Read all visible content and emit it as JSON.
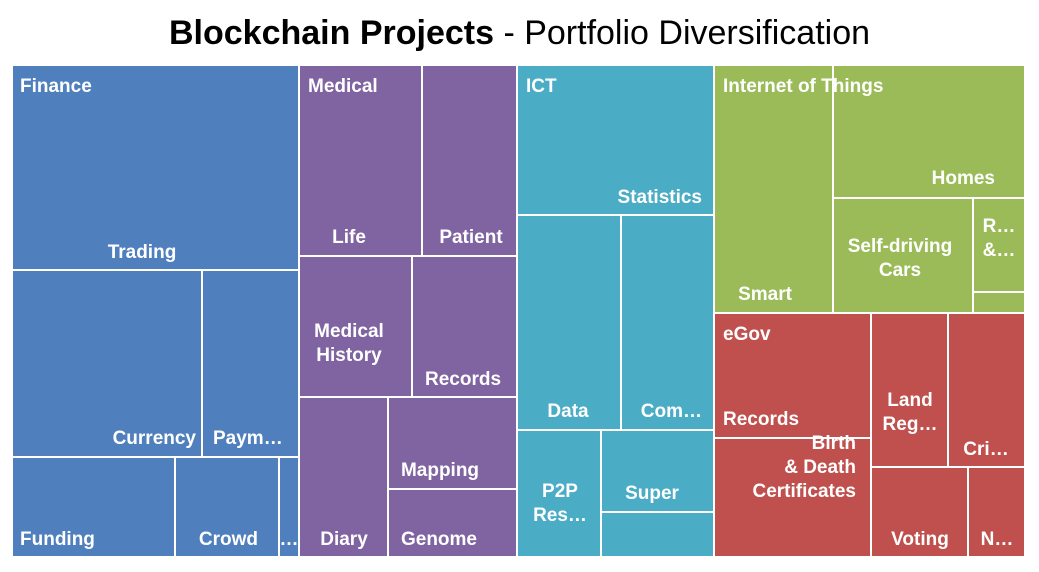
{
  "title": {
    "bold": "Blockchain Projects",
    "rest": " - Portfolio Diversification"
  },
  "chart_data": {
    "type": "treemap",
    "groups": [
      {
        "name": "Finance",
        "color": "#4f7fbd",
        "items": [
          {
            "label": [
              "Trading"
            ]
          },
          {
            "label": [
              "Currency"
            ]
          },
          {
            "label": [
              "Paym…"
            ]
          },
          {
            "label": [
              "Funding"
            ]
          },
          {
            "label": [
              "Crowd"
            ]
          },
          {
            "label": [
              "…"
            ]
          }
        ]
      },
      {
        "name": "Medical",
        "color": "#8064a2",
        "items": [
          {
            "label": [
              "Life"
            ]
          },
          {
            "label": [
              "Patient"
            ]
          },
          {
            "label": [
              "Medical",
              "History"
            ]
          },
          {
            "label": [
              "Records"
            ]
          },
          {
            "label": [
              "Diary"
            ]
          },
          {
            "label": [
              "Mapping"
            ]
          },
          {
            "label": [
              "Genome"
            ]
          }
        ]
      },
      {
        "name": "ICT",
        "color": "#4bacc6",
        "items": [
          {
            "label": [
              "Statistics"
            ]
          },
          {
            "label": [
              "Data"
            ]
          },
          {
            "label": [
              "Com…"
            ]
          },
          {
            "label": [
              "P2P",
              "Res…"
            ]
          },
          {
            "label": [
              "Super"
            ]
          },
          {
            "label": []
          }
        ]
      },
      {
        "name": "Internet of Things",
        "color": "#9bbb59",
        "items": [
          {
            "label": [
              "Smart"
            ]
          },
          {
            "label": [
              "Homes"
            ]
          },
          {
            "label": [
              "Self-driving",
              "Cars"
            ]
          },
          {
            "label": [
              "R…",
              "&…"
            ]
          },
          {
            "label": []
          }
        ]
      },
      {
        "name": "eGov",
        "color": "#c0504d",
        "items": [
          {
            "label": [
              "Records"
            ]
          },
          {
            "label": [
              "Land",
              "Reg…"
            ]
          },
          {
            "label": [
              "Cri…"
            ]
          },
          {
            "label": [
              "Birth",
              "& Death",
              "Certificates"
            ]
          },
          {
            "label": [
              "Voting"
            ]
          },
          {
            "label": [
              "N…"
            ]
          }
        ]
      }
    ]
  }
}
